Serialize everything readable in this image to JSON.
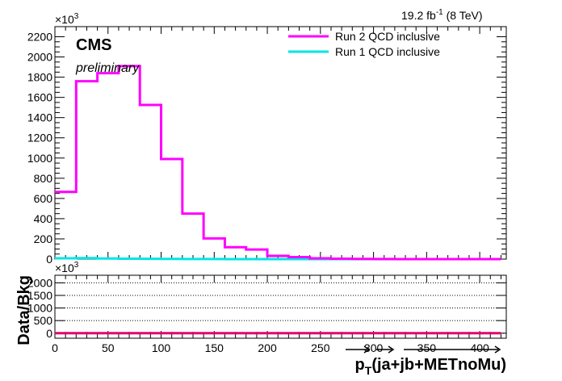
{
  "chart_data": [
    {
      "type": "histogram",
      "panel": "main",
      "x_bin_edges": [
        0,
        20,
        40,
        60,
        80,
        100,
        120,
        140,
        160,
        180,
        200,
        220,
        240,
        260,
        280,
        300,
        320,
        340,
        360,
        380,
        400,
        420
      ],
      "series": [
        {
          "name": "Run 2 QCD inclusive",
          "color": "#ff00ff",
          "values": [
            665,
            1760,
            1840,
            1910,
            1525,
            990,
            450,
            205,
            118,
            95,
            32,
            20,
            8,
            4,
            2,
            1,
            0,
            0,
            0,
            0,
            0
          ]
        },
        {
          "name": "Run 1 QCD inclusive",
          "color": "#00e5e5",
          "values": [
            8,
            10,
            6,
            4,
            3,
            2,
            1,
            1,
            0,
            0,
            0,
            0,
            0,
            0,
            0,
            0,
            0,
            0,
            0,
            0,
            0
          ]
        }
      ],
      "xlim": [
        0,
        425
      ],
      "ylim": [
        0,
        2300
      ],
      "y_multiplier_label": "×10",
      "y_multiplier_exp": "3",
      "y_ticks": [
        0,
        200,
        400,
        600,
        800,
        1000,
        1200,
        1400,
        1600,
        1800,
        2000,
        2200
      ],
      "y_tick_labels": [
        "0",
        "200",
        "400",
        "600",
        "800",
        "1000",
        "1200",
        "1400",
        "1600",
        "1800",
        "2000",
        "2200"
      ],
      "luminosity_label": "19.2 fb",
      "luminosity_exp": "-1",
      "energy_label": "(8 TeV)",
      "experiment_label": "CMS",
      "status_label": "preliminary",
      "legend_position": "top-right"
    },
    {
      "type": "histogram",
      "panel": "ratio",
      "ylabel": "Data/Bkg",
      "y_multiplier_label": "×10",
      "y_multiplier_exp": "3",
      "ylim": [
        -200,
        2300
      ],
      "y_ticks": [
        0,
        500,
        1000,
        1500,
        2000
      ],
      "y_tick_labels": [
        "0",
        "500",
        "1000",
        "1500",
        "2000"
      ],
      "grid": true,
      "xlim": [
        0,
        425
      ],
      "x_ticks": [
        0,
        50,
        100,
        150,
        200,
        250,
        300,
        350,
        400
      ],
      "x_tick_labels": [
        "0",
        "50",
        "100",
        "150",
        "200",
        "250",
        "300",
        "350",
        "400"
      ],
      "xlabel_main": "p",
      "xlabel_sub": "T",
      "xlabel_rest": "(ja+jb+METnoMu)",
      "series": [
        {
          "name": "Data/Bkg",
          "color": "#e0006e",
          "values": [
            0,
            0,
            0,
            0,
            0,
            0,
            0,
            0,
            0,
            0,
            0,
            0,
            0,
            0,
            0,
            0,
            0,
            0,
            0,
            0,
            0
          ]
        }
      ]
    }
  ]
}
